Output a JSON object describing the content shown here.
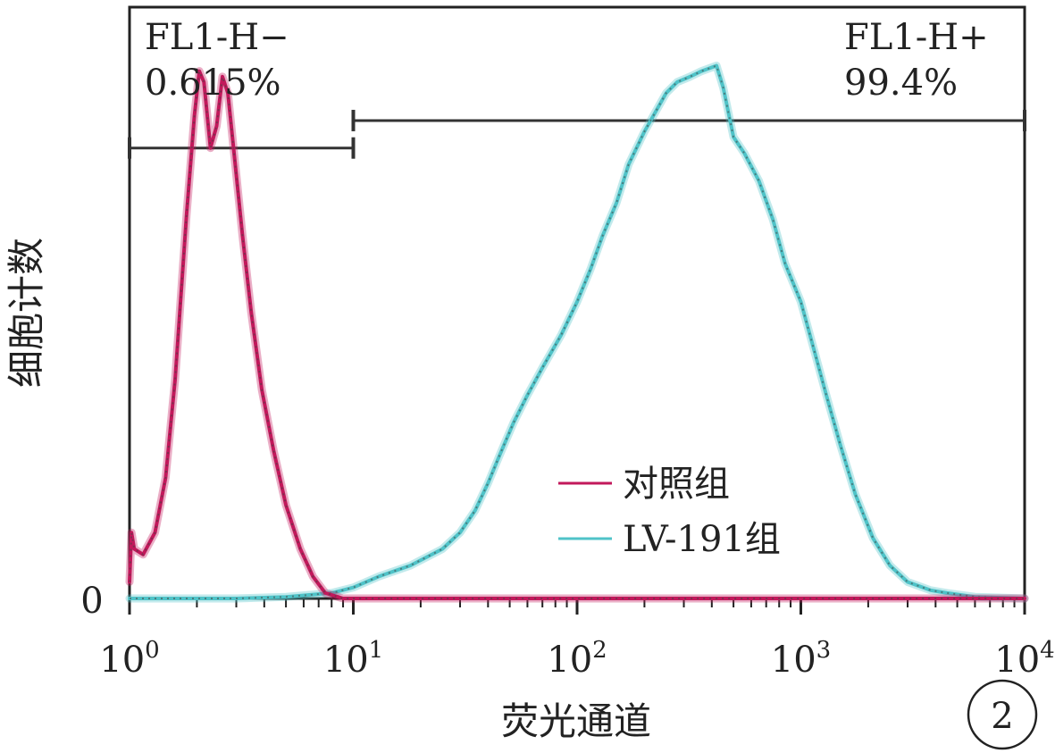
{
  "chart_data": {
    "type": "line",
    "title": "",
    "xlabel": "荧光通道",
    "ylabel": "细胞计数",
    "x_scale": "log",
    "xlim": [
      1,
      10000
    ],
    "ylim": [
      0,
      100
    ],
    "x_ticks": [
      {
        "value": 1,
        "base": "10",
        "exp": "0"
      },
      {
        "value": 10,
        "base": "10",
        "exp": "1"
      },
      {
        "value": 100,
        "base": "10",
        "exp": "2"
      },
      {
        "value": 1000,
        "base": "10",
        "exp": "3"
      },
      {
        "value": 10000,
        "base": "10",
        "exp": "4"
      }
    ],
    "y_ticks": [
      {
        "value": 0,
        "label": "0"
      }
    ],
    "grid": false,
    "legend": {
      "position": "center-right",
      "entries": [
        {
          "label": "对照组",
          "color": "#C2185B"
        },
        {
          "label": "LV-191组",
          "color": "#4FC3C8"
        }
      ]
    },
    "gates": [
      {
        "name": "FL1-H−",
        "percent": "0.615%",
        "x_range": [
          1,
          10
        ],
        "level": 82
      },
      {
        "name": "FL1-H+",
        "percent": "99.4%",
        "x_range": [
          10,
          10000
        ],
        "level": 87
      }
    ],
    "series": [
      {
        "name": "对照组",
        "color": "#C2185B",
        "points": [
          [
            1.0,
            3
          ],
          [
            1.02,
            12
          ],
          [
            1.05,
            9
          ],
          [
            1.15,
            8
          ],
          [
            1.3,
            12
          ],
          [
            1.45,
            22
          ],
          [
            1.6,
            40
          ],
          [
            1.8,
            70
          ],
          [
            1.95,
            88
          ],
          [
            2.05,
            96
          ],
          [
            2.15,
            94
          ],
          [
            2.3,
            82
          ],
          [
            2.45,
            86
          ],
          [
            2.6,
            95
          ],
          [
            2.75,
            92
          ],
          [
            2.95,
            80
          ],
          [
            3.2,
            66
          ],
          [
            3.5,
            52
          ],
          [
            3.9,
            38
          ],
          [
            4.4,
            27
          ],
          [
            5.0,
            17
          ],
          [
            5.8,
            9
          ],
          [
            6.6,
            4
          ],
          [
            7.5,
            1
          ],
          [
            9,
            0
          ],
          [
            15,
            0
          ],
          [
            100,
            0
          ],
          [
            1000,
            0
          ],
          [
            10000,
            0
          ]
        ]
      },
      {
        "name": "LV-191组",
        "color": "#4FC3C8",
        "points": [
          [
            1.0,
            0
          ],
          [
            3,
            0
          ],
          [
            5,
            0.3
          ],
          [
            8,
            1
          ],
          [
            10,
            2
          ],
          [
            13,
            4
          ],
          [
            18,
            6
          ],
          [
            25,
            9
          ],
          [
            30,
            12
          ],
          [
            35,
            16
          ],
          [
            40,
            21
          ],
          [
            45,
            26
          ],
          [
            52,
            32
          ],
          [
            60,
            37
          ],
          [
            70,
            42
          ],
          [
            85,
            48
          ],
          [
            100,
            54
          ],
          [
            115,
            60
          ],
          [
            130,
            66
          ],
          [
            150,
            72
          ],
          [
            170,
            79
          ],
          [
            200,
            85
          ],
          [
            220,
            88
          ],
          [
            250,
            92
          ],
          [
            280,
            94
          ],
          [
            320,
            95
          ],
          [
            360,
            96
          ],
          [
            420,
            97
          ],
          [
            450,
            93
          ],
          [
            500,
            84
          ],
          [
            560,
            81
          ],
          [
            650,
            76
          ],
          [
            750,
            69
          ],
          [
            850,
            61
          ],
          [
            1000,
            54
          ],
          [
            1150,
            45
          ],
          [
            1300,
            37
          ],
          [
            1500,
            28
          ],
          [
            1750,
            19
          ],
          [
            2100,
            11
          ],
          [
            2500,
            6
          ],
          [
            3000,
            3
          ],
          [
            3800,
            1.5
          ],
          [
            4500,
            1
          ],
          [
            6000,
            0.3
          ],
          [
            10000,
            0
          ]
        ]
      }
    ]
  },
  "annotations": {
    "gate_left_name": "FL1-H−",
    "gate_left_percent": "0.615%",
    "gate_right_name": "FL1-H+",
    "gate_right_percent": "99.4%",
    "panel_number": "2"
  },
  "colors": {
    "axis": "#222222",
    "gate_line": "#333333",
    "control_line": "#C2185B",
    "lv_line": "#4FC3C8"
  }
}
